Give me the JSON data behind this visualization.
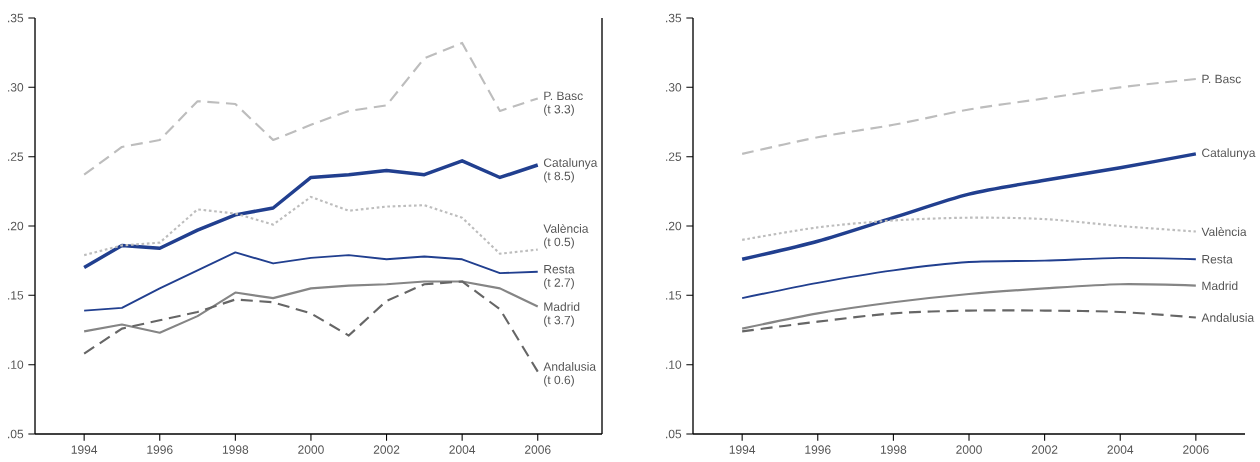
{
  "chart_data": [
    {
      "type": "line",
      "xlim": [
        1992.7,
        2007.7
      ],
      "ylim": [
        0.05,
        0.35
      ],
      "xticks": [
        1994,
        1996,
        1998,
        2000,
        2002,
        2004,
        2006
      ],
      "yticks": [
        {
          "value": 0.05,
          "label": ".05"
        },
        {
          "value": 0.1,
          "label": ".10"
        },
        {
          "value": 0.15,
          "label": ".15"
        },
        {
          "value": 0.2,
          "label": ".20"
        },
        {
          "value": 0.25,
          "label": ".25"
        },
        {
          "value": 0.3,
          "label": ".30"
        },
        {
          "value": 0.35,
          "label": ".35"
        }
      ],
      "x": [
        1994,
        1995,
        1996,
        1997,
        1998,
        1999,
        2000,
        2001,
        2002,
        2003,
        2004,
        2005,
        2006
      ],
      "series": [
        {
          "name": "P. Basc",
          "color": "#bdbdbd",
          "line_style": "dashed",
          "values": [
            0.237,
            0.257,
            0.262,
            0.29,
            0.288,
            0.262,
            0.273,
            0.283,
            0.287,
            0.321,
            0.332,
            0.283,
            0.292
          ]
        },
        {
          "name": "Catalunya",
          "color": "#213f8f",
          "line_style": "solid",
          "values": [
            0.17,
            0.186,
            0.184,
            0.197,
            0.208,
            0.213,
            0.235,
            0.237,
            0.24,
            0.237,
            0.247,
            0.235,
            0.244
          ]
        },
        {
          "name": "València",
          "color": "#bdbdbd",
          "line_style": "dotted",
          "values": [
            0.179,
            0.186,
            0.188,
            0.212,
            0.209,
            0.201,
            0.221,
            0.211,
            0.214,
            0.215,
            0.206,
            0.18,
            0.183
          ]
        },
        {
          "name": "Resta",
          "color": "#213f8f",
          "line_style": "solid",
          "values": [
            0.139,
            0.141,
            0.155,
            0.168,
            0.181,
            0.173,
            0.177,
            0.179,
            0.176,
            0.178,
            0.176,
            0.166,
            0.167
          ]
        },
        {
          "name": "Madrid",
          "color": "#858585",
          "line_style": "solid",
          "values": [
            0.124,
            0.129,
            0.123,
            0.135,
            0.152,
            0.148,
            0.155,
            0.157,
            0.158,
            0.16,
            0.16,
            0.155,
            0.142
          ]
        },
        {
          "name": "Andalusia",
          "color": "#666666",
          "line_style": "dashed",
          "values": [
            0.108,
            0.126,
            0.132,
            0.138,
            0.147,
            0.145,
            0.137,
            0.121,
            0.146,
            0.158,
            0.16,
            0.14,
            0.095
          ]
        }
      ],
      "annotations": [
        "(t 3.3)",
        "(t 8.5)",
        "(t 0.5)",
        "(t 2.7)",
        "(t 3.7)",
        "(t 0.6)"
      ]
    },
    {
      "type": "line",
      "xlim": [
        1992.7,
        2007.3
      ],
      "ylim": [
        0.05,
        0.35
      ],
      "xticks": [
        1994,
        1996,
        1998,
        2000,
        2002,
        2004,
        2006
      ],
      "yticks": [
        {
          "value": 0.05,
          "label": ".05"
        },
        {
          "value": 0.1,
          "label": ".10"
        },
        {
          "value": 0.15,
          "label": ".15"
        },
        {
          "value": 0.2,
          "label": ".20"
        },
        {
          "value": 0.25,
          "label": ".25"
        },
        {
          "value": 0.3,
          "label": ".30"
        },
        {
          "value": 0.35,
          "label": ".35"
        }
      ],
      "x": [
        1994,
        1996,
        1998,
        2000,
        2002,
        2004,
        2006
      ],
      "series": [
        {
          "name": "P. Basc",
          "color": "#bdbdbd",
          "line_style": "dashed",
          "values": [
            0.252,
            0.264,
            0.273,
            0.284,
            0.292,
            0.3,
            0.306
          ]
        },
        {
          "name": "Catalunya",
          "color": "#213f8f",
          "line_style": "solid",
          "values": [
            0.176,
            0.189,
            0.206,
            0.223,
            0.233,
            0.242,
            0.252
          ]
        },
        {
          "name": "València",
          "color": "#bdbdbd",
          "line_style": "dotted",
          "values": [
            0.19,
            0.199,
            0.204,
            0.206,
            0.205,
            0.2,
            0.196
          ]
        },
        {
          "name": "Resta",
          "color": "#213f8f",
          "line_style": "solid",
          "values": [
            0.148,
            0.159,
            0.168,
            0.174,
            0.175,
            0.177,
            0.176
          ]
        },
        {
          "name": "Madrid",
          "color": "#858585",
          "line_style": "solid",
          "values": [
            0.126,
            0.137,
            0.145,
            0.151,
            0.155,
            0.158,
            0.157
          ]
        },
        {
          "name": "Andalusia",
          "color": "#666666",
          "line_style": "dashed",
          "values": [
            0.124,
            0.131,
            0.137,
            0.139,
            0.139,
            0.138,
            0.134
          ]
        }
      ]
    }
  ]
}
